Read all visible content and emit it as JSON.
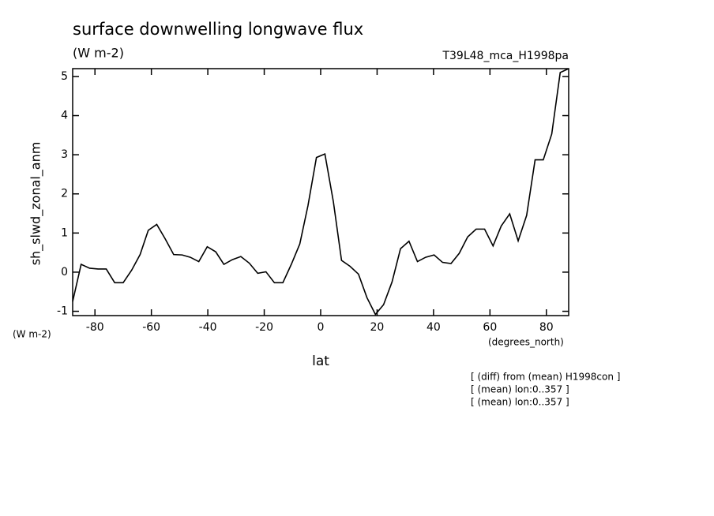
{
  "chart_data": {
    "type": "line",
    "title": "surface downwelling longwave flux",
    "units": "(W m-2)",
    "run_label": "T39L48_mca_H1998pa",
    "y_label": "sh_slwd_zonal_anm",
    "y_units": "(W m-2)",
    "x_units": "(degrees_north)",
    "x_label": "lat",
    "notes": [
      "[ (diff) from (mean) H1998con ]",
      "[ (mean) lon:0..357 ]",
      "[ (mean) lon:0..357 ]"
    ],
    "x": [
      -87.9,
      -84.9,
      -81.9,
      -78.9,
      -76.0,
      -73.0,
      -70.0,
      -67.0,
      -64.0,
      -61.1,
      -58.1,
      -55.1,
      -52.1,
      -49.1,
      -46.2,
      -43.2,
      -40.2,
      -37.2,
      -34.3,
      -31.3,
      -28.3,
      -25.3,
      -22.3,
      -19.4,
      -16.4,
      -13.4,
      -10.4,
      -7.4,
      -4.5,
      -1.5,
      1.5,
      4.5,
      7.4,
      10.4,
      13.4,
      16.4,
      19.4,
      22.3,
      25.3,
      28.3,
      31.3,
      34.3,
      37.2,
      40.2,
      43.2,
      46.2,
      49.1,
      52.1,
      55.1,
      58.1,
      61.1,
      64.0,
      67.0,
      70.0,
      73.0,
      76.0,
      78.9,
      81.9,
      84.9,
      87.9
    ],
    "series": [
      {
        "name": "sh_slwd_zonal_anm",
        "color": "#000000",
        "values": [
          -0.75,
          0.2,
          0.1,
          0.08,
          0.08,
          -0.27,
          -0.27,
          0.05,
          0.45,
          1.07,
          1.22,
          0.85,
          0.45,
          0.44,
          0.38,
          0.27,
          0.65,
          0.52,
          0.2,
          0.32,
          0.4,
          0.23,
          -0.03,
          0.01,
          -0.27,
          -0.27,
          0.2,
          0.72,
          1.7,
          2.93,
          3.02,
          1.8,
          0.3,
          0.15,
          -0.05,
          -0.65,
          -1.08,
          -0.83,
          -0.25,
          0.6,
          0.79,
          0.27,
          0.38,
          0.44,
          0.25,
          0.22,
          0.48,
          0.9,
          1.1,
          1.1,
          0.67,
          1.18,
          1.49,
          0.8,
          1.45,
          2.87,
          2.87,
          3.53,
          5.1,
          5.2
        ]
      }
    ],
    "xlim": [
      -87.9,
      87.9
    ],
    "ylim": [
      -1.11,
      5.2
    ],
    "xticks": [
      -80,
      -60,
      -40,
      -20,
      0,
      20,
      40,
      60,
      80
    ],
    "yticks": [
      -1,
      0,
      1,
      2,
      3,
      4,
      5
    ]
  }
}
